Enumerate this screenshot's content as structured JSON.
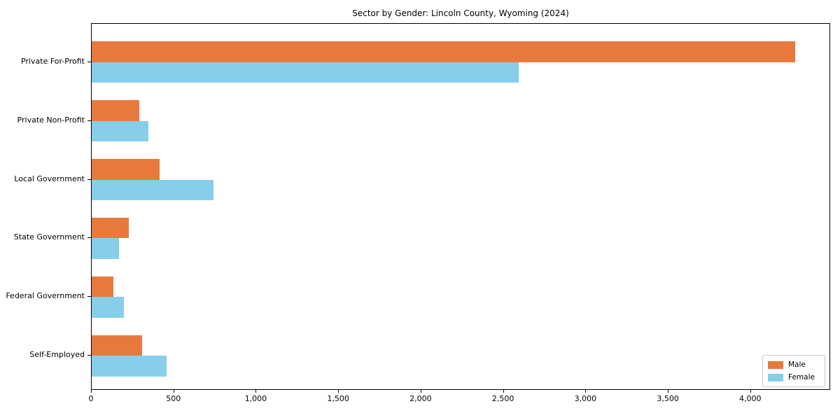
{
  "chart_data": {
    "type": "bar",
    "orientation": "horizontal",
    "title": "Sector by Gender: Lincoln County, Wyoming (2024)",
    "categories": [
      "Private For-Profit",
      "Private Non-Profit",
      "Local Government",
      "State Government",
      "Federal Government",
      "Self-Employed"
    ],
    "series": [
      {
        "name": "Male",
        "color": "#E8793D",
        "values": [
          4270,
          290,
          410,
          225,
          130,
          305
        ]
      },
      {
        "name": "Female",
        "color": "#87CEEB",
        "values": [
          2590,
          345,
          740,
          165,
          195,
          455
        ]
      }
    ],
    "xlim": [
      0,
      4485
    ],
    "xticks": [
      {
        "value": 0,
        "label": "0"
      },
      {
        "value": 500,
        "label": "500"
      },
      {
        "value": 1000,
        "label": "1,000"
      },
      {
        "value": 1500,
        "label": "1,500"
      },
      {
        "value": 2000,
        "label": "2,000"
      },
      {
        "value": 2500,
        "label": "2,500"
      },
      {
        "value": 3000,
        "label": "3,000"
      },
      {
        "value": 3500,
        "label": "3,500"
      },
      {
        "value": 4000,
        "label": "4,000"
      }
    ],
    "grid": false,
    "legend_position": "lower right"
  }
}
